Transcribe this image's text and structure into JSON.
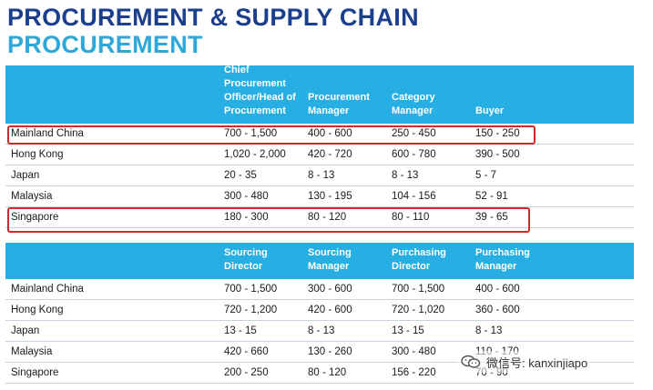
{
  "titles": {
    "main": "PROCUREMENT & SUPPLY CHAIN",
    "sub": "PROCUREMENT"
  },
  "table1": {
    "headers": [
      "",
      "Chief Procurement Officer/Head of Procurement",
      "Procurement Manager",
      "Category Manager",
      "Buyer"
    ],
    "rows": [
      [
        "Mainland China",
        "700 - 1,500",
        "400 - 600",
        "250 - 450",
        "150 - 250"
      ],
      [
        "Hong Kong",
        "1,020 - 2,000",
        "420 - 720",
        "600 - 780",
        "390 - 500"
      ],
      [
        "Japan",
        "20 - 35",
        "8 - 13",
        "8 - 13",
        "5 - 7"
      ],
      [
        "Malaysia",
        "300 - 480",
        "130 - 195",
        "104 - 156",
        "52 - 91"
      ],
      [
        "Singapore",
        "180 - 300",
        "80 - 120",
        "80 - 110",
        "39 - 65"
      ]
    ]
  },
  "table2": {
    "headers": [
      "",
      "Sourcing Director",
      "Sourcing Manager",
      "Purchasing Director",
      "Purchasing Manager"
    ],
    "rows": [
      [
        "Mainland China",
        "700 - 1,500",
        "300 - 600",
        "700 - 1,500",
        "400 - 600"
      ],
      [
        "Hong Kong",
        "720 - 1,200",
        "420 - 600",
        "720 - 1,020",
        "360 - 600"
      ],
      [
        "Japan",
        "13 - 15",
        "8 - 13",
        "13 - 15",
        "8 - 13"
      ],
      [
        "Malaysia",
        "420 - 660",
        "130 - 260",
        "300 - 480",
        "110 - 170"
      ],
      [
        "Singapore",
        "200 - 250",
        "80 - 120",
        "156 - 220",
        "70 - 90"
      ]
    ]
  },
  "watermark": {
    "text": "微信号: kanxinjiapo",
    "icon": "wechat-icon"
  },
  "colors": {
    "title_dark": "#1b3f8c",
    "title_light": "#2fa7d8",
    "header_bg": "#27aee3",
    "highlight": "#d12a2a"
  }
}
